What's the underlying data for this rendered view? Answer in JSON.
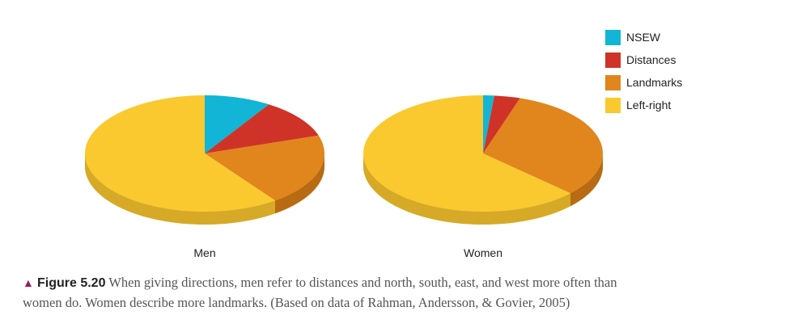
{
  "chart_data": {
    "type": "pie",
    "legend_position": "top-right",
    "legend": [
      {
        "name": "NSEW",
        "color": "#12b5d6"
      },
      {
        "name": "Distances",
        "color": "#cf3327"
      },
      {
        "name": "Landmarks",
        "color": "#e0861d"
      },
      {
        "name": "Left-right",
        "color": "#fac92f"
      }
    ],
    "pies": [
      {
        "label": "Men",
        "values": [
          9,
          11,
          20,
          60
        ]
      },
      {
        "label": "Women",
        "values": [
          1.5,
          3.5,
          32,
          63
        ]
      }
    ]
  },
  "caption": {
    "figure": "Figure 5.20",
    "text": "When giving directions, men refer to distances and north, south, east, and west more often than women do. Women describe more landmarks. (Based on data of Rahman, Andersson, & Govier, 2005)"
  }
}
